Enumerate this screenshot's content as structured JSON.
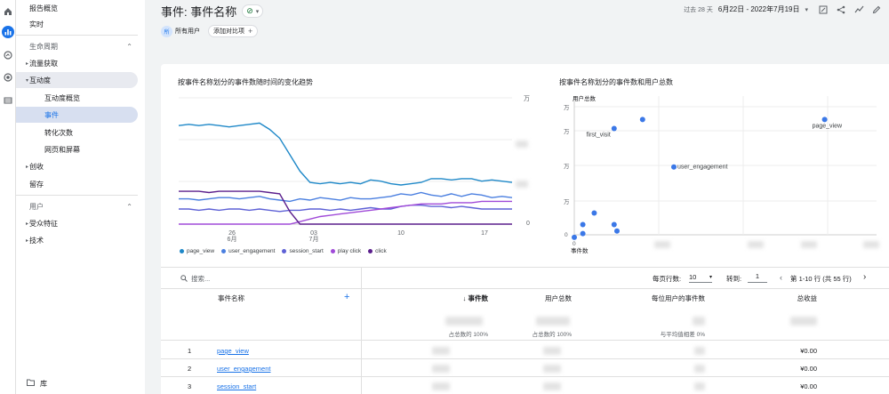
{
  "rail": {
    "icons": [
      "home-icon",
      "reports-icon",
      "explore-icon",
      "advertising-icon",
      "configure-icon"
    ]
  },
  "nav": {
    "top_items": [
      "报告概览",
      "实时"
    ],
    "sec_lifecycle": "生命周期",
    "acquisition": "流量获取",
    "engagement": "互动度",
    "engagement_sub": [
      "互动度概览",
      "事件",
      "转化次数",
      "网页和屏幕"
    ],
    "monetization": "创收",
    "retention": "留存",
    "sec_user": "用户",
    "demographics": "受众特征",
    "tech": "技术",
    "library": "库"
  },
  "header": {
    "title": "事件: 事件名称",
    "verify_glyph": "⊘",
    "all_users_badge": "所",
    "all_users": "所有用户",
    "add_compare": "添加对比项",
    "range_label": "过去 28 天",
    "dates": "6月22日 - 2022年7月19日"
  },
  "line_chart": {
    "title": "按事件名称划分的事件数随时间的变化趋势",
    "y_label_top": "万",
    "y_label_bottom": "0",
    "x_ticks": [
      "26",
      "03",
      "10",
      "17"
    ],
    "x_months": [
      "6月",
      "7月"
    ]
  },
  "scatter_chart": {
    "title": "按事件名称划分的事件数和用户总数",
    "y_title": "用户总数",
    "x_title": "事件数",
    "y_ticks": [
      "万",
      "万",
      "万",
      "万",
      "万"
    ],
    "x_zero": "0",
    "y_zero": "0",
    "labels": [
      "first_visit",
      "page_view",
      "user_engagement"
    ]
  },
  "chart_data": [
    {
      "type": "line",
      "title": "按事件名称划分的事件数随时间的变化趋势",
      "x_ticks": [
        "26",
        "03",
        "10",
        "17"
      ],
      "series": [
        {
          "name": "page_view",
          "color": "#1e88c8",
          "values": [
            0.78,
            0.79,
            0.78,
            0.79,
            0.78,
            0.77,
            0.78,
            0.79,
            0.8,
            0.75,
            0.68,
            0.55,
            0.42,
            0.33,
            0.32,
            0.33,
            0.32,
            0.33,
            0.32,
            0.35,
            0.34,
            0.32,
            0.31,
            0.32,
            0.33,
            0.36,
            0.36,
            0.35,
            0.36,
            0.36,
            0.34,
            0.35,
            0.34,
            0.33
          ]
        },
        {
          "name": "user_engagement",
          "color": "#4a7fe0",
          "values": [
            0.2,
            0.2,
            0.19,
            0.2,
            0.21,
            0.21,
            0.2,
            0.21,
            0.22,
            0.2,
            0.19,
            0.18,
            0.2,
            0.19,
            0.21,
            0.2,
            0.19,
            0.21,
            0.2,
            0.2,
            0.21,
            0.22,
            0.24,
            0.23,
            0.25,
            0.23,
            0.22,
            0.24,
            0.22,
            0.24,
            0.23,
            0.21,
            0.22,
            0.21
          ]
        },
        {
          "name": "session_start",
          "color": "#5e61d6",
          "values": [
            0.12,
            0.12,
            0.11,
            0.12,
            0.11,
            0.12,
            0.12,
            0.11,
            0.12,
            0.11,
            0.1,
            0.11,
            0.11,
            0.12,
            0.12,
            0.11,
            0.12,
            0.11,
            0.12,
            0.13,
            0.12,
            0.12,
            0.14,
            0.15,
            0.15,
            0.14,
            0.14,
            0.13,
            0.14,
            0.13,
            0.12,
            0.12,
            0.12,
            0.12
          ]
        },
        {
          "name": "play click",
          "color": "#a04ad8",
          "values": [
            0.0,
            0.0,
            0.0,
            0.0,
            0.0,
            0.0,
            0.0,
            0.0,
            0.0,
            0.0,
            0.0,
            0.0,
            0.02,
            0.04,
            0.06,
            0.07,
            0.08,
            0.09,
            0.1,
            0.11,
            0.12,
            0.13,
            0.14,
            0.15,
            0.16,
            0.16,
            0.16,
            0.17,
            0.17,
            0.17,
            0.18,
            0.18,
            0.18,
            0.18
          ]
        },
        {
          "name": "click",
          "color": "#5a1e8c",
          "values": [
            0.26,
            0.26,
            0.26,
            0.25,
            0.26,
            0.26,
            0.26,
            0.26,
            0.26,
            0.25,
            0.24,
            0.1,
            0.0,
            0.0,
            0.0,
            0.0,
            0.0,
            0.0,
            0.0,
            0.0,
            0.0,
            0.0,
            0.0,
            0.0,
            0.0,
            0.0,
            0.0,
            0.0,
            0.0,
            0.0,
            0.0,
            0.0,
            0.0,
            0.0
          ]
        }
      ]
    },
    {
      "type": "scatter",
      "title": "按事件名称划分的事件数和用户总数",
      "xlabel": "事件数",
      "ylabel": "用户总数",
      "xlim": [
        0,
        1
      ],
      "ylim": [
        0,
        1
      ],
      "points": [
        {
          "label": "first_visit",
          "x": 0.14,
          "y": 0.83
        },
        {
          "label": "",
          "x": 0.24,
          "y": 0.9
        },
        {
          "label": "page_view",
          "x": 0.88,
          "y": 0.9
        },
        {
          "label": "user_engagement",
          "x": 0.35,
          "y": 0.53
        },
        {
          "label": "",
          "x": 0.07,
          "y": 0.17
        },
        {
          "label": "",
          "x": 0.03,
          "y": 0.08
        },
        {
          "label": "",
          "x": 0.03,
          "y": 0.01
        },
        {
          "label": "",
          "x": 0.0,
          "y": -0.02
        },
        {
          "label": "",
          "x": 0.14,
          "y": 0.08
        },
        {
          "label": "",
          "x": 0.15,
          "y": 0.03
        }
      ]
    }
  ],
  "table": {
    "search_placeholder": "搜索...",
    "rows_per_page_label": "每页行数:",
    "rows_per_page": "10",
    "goto_label": "转到:",
    "goto_value": "1",
    "page_info": "第 1-10 行 (共 55 行)",
    "col_event_name": "事件名称",
    "col_event_count": "↓ 事件数",
    "col_total_users": "用户总数",
    "col_per_user": "每位用户的事件数",
    "col_revenue": "总收益",
    "total_pct_events": "占总数的 100%",
    "total_pct_users": "占总数的 100%",
    "avg_diff": "与平均值相差 0%",
    "rows": [
      {
        "idx": "1",
        "name": "page_view",
        "revenue": "¥0.00"
      },
      {
        "idx": "2",
        "name": "user_engagement",
        "revenue": "¥0.00"
      },
      {
        "idx": "3",
        "name": "session_start",
        "revenue": "¥0.00"
      }
    ]
  }
}
